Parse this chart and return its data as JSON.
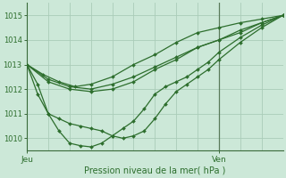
{
  "xlabel": "Pression niveau de la mer( hPa )",
  "bg_color": "#cce8d8",
  "grid_color": "#aaccb8",
  "line_color": "#2d6e2d",
  "axis_color": "#3a6a3a",
  "ylim": [
    1009.5,
    1015.5
  ],
  "xlim": [
    0,
    48
  ],
  "jeu_x": 0,
  "ven_x": 36,
  "yticks": [
    1010,
    1011,
    1012,
    1013,
    1014,
    1015
  ],
  "xtick_positions": [
    0,
    36
  ],
  "xtick_labels": [
    "Jeu",
    "Ven"
  ],
  "series": [
    [
      [
        0,
        1013.0
      ],
      [
        3,
        1012.6
      ],
      [
        6,
        1012.3
      ],
      [
        9,
        1012.1
      ],
      [
        12,
        1012.2
      ],
      [
        16,
        1012.5
      ],
      [
        20,
        1013.0
      ],
      [
        24,
        1013.4
      ],
      [
        28,
        1013.9
      ],
      [
        32,
        1014.3
      ],
      [
        36,
        1014.5
      ],
      [
        40,
        1014.7
      ],
      [
        44,
        1014.85
      ],
      [
        48,
        1015.0
      ]
    ],
    [
      [
        0,
        1013.0
      ],
      [
        2,
        1012.2
      ],
      [
        4,
        1011.0
      ],
      [
        6,
        1010.8
      ],
      [
        8,
        1010.6
      ],
      [
        10,
        1010.5
      ],
      [
        12,
        1010.4
      ],
      [
        14,
        1010.3
      ],
      [
        16,
        1010.1
      ],
      [
        18,
        1010.0
      ],
      [
        20,
        1010.1
      ],
      [
        22,
        1010.3
      ],
      [
        24,
        1010.8
      ],
      [
        26,
        1011.4
      ],
      [
        28,
        1011.9
      ],
      [
        30,
        1012.2
      ],
      [
        32,
        1012.5
      ],
      [
        34,
        1012.8
      ],
      [
        36,
        1013.2
      ],
      [
        40,
        1013.9
      ],
      [
        44,
        1014.5
      ],
      [
        48,
        1015.0
      ]
    ],
    [
      [
        0,
        1013.0
      ],
      [
        4,
        1012.3
      ],
      [
        8,
        1012.0
      ],
      [
        12,
        1011.9
      ],
      [
        16,
        1012.0
      ],
      [
        20,
        1012.3
      ],
      [
        24,
        1012.8
      ],
      [
        28,
        1013.2
      ],
      [
        32,
        1013.7
      ],
      [
        36,
        1014.0
      ],
      [
        40,
        1014.4
      ],
      [
        44,
        1014.7
      ],
      [
        48,
        1015.0
      ]
    ],
    [
      [
        0,
        1013.0
      ],
      [
        2,
        1011.8
      ],
      [
        4,
        1011.0
      ],
      [
        6,
        1010.3
      ],
      [
        8,
        1009.8
      ],
      [
        10,
        1009.7
      ],
      [
        12,
        1009.65
      ],
      [
        14,
        1009.8
      ],
      [
        16,
        1010.1
      ],
      [
        18,
        1010.4
      ],
      [
        20,
        1010.7
      ],
      [
        22,
        1011.2
      ],
      [
        24,
        1011.8
      ],
      [
        26,
        1012.1
      ],
      [
        28,
        1012.3
      ],
      [
        30,
        1012.5
      ],
      [
        32,
        1012.8
      ],
      [
        34,
        1013.1
      ],
      [
        36,
        1013.5
      ],
      [
        40,
        1014.1
      ],
      [
        44,
        1014.6
      ],
      [
        48,
        1015.0
      ]
    ],
    [
      [
        0,
        1013.0
      ],
      [
        4,
        1012.4
      ],
      [
        8,
        1012.1
      ],
      [
        12,
        1012.0
      ],
      [
        16,
        1012.2
      ],
      [
        20,
        1012.5
      ],
      [
        24,
        1012.9
      ],
      [
        28,
        1013.3
      ],
      [
        32,
        1013.7
      ],
      [
        36,
        1014.0
      ],
      [
        40,
        1014.3
      ],
      [
        44,
        1014.7
      ],
      [
        48,
        1015.0
      ]
    ]
  ]
}
